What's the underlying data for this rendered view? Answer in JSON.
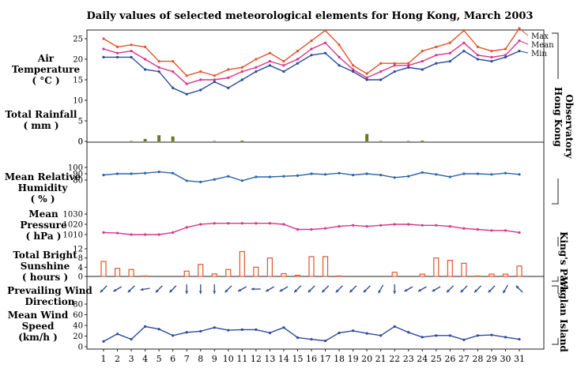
{
  "chart_data": {
    "type": "line",
    "title": "Daily values of selected meteorological elements for Hong Kong, March 2003",
    "x": [
      1,
      2,
      3,
      4,
      5,
      6,
      7,
      8,
      9,
      10,
      11,
      12,
      13,
      14,
      15,
      16,
      17,
      18,
      19,
      20,
      21,
      22,
      23,
      24,
      25,
      26,
      27,
      28,
      29,
      30,
      31
    ],
    "x_tick_labels": [
      "1",
      "2",
      "3",
      "4",
      "5",
      "6",
      "7",
      "8",
      "9",
      "10",
      "11",
      "12",
      "13",
      "14",
      "15",
      "16",
      "17",
      "18",
      "19",
      "20",
      "21",
      "22",
      "23",
      "24",
      "25",
      "26",
      "27",
      "28",
      "29",
      "30",
      "31"
    ],
    "station_labels": {
      "hko": "Hong Kong Observatory",
      "kp": "King's Park",
      "wi": "Waglan Island"
    },
    "panels": {
      "temperature": {
        "label": [
          "Air",
          "Temperature",
          "( °C )"
        ],
        "ylim": [
          0,
          25
        ],
        "ticks": [
          "0",
          "5",
          "10",
          "15",
          "20",
          "25"
        ],
        "series": [
          {
            "name": "Max",
            "color": "#e0552e",
            "values": [
              25,
              23,
              23.5,
              23,
              19.5,
              19.5,
              16,
              17,
              16,
              17.5,
              18,
              20,
              21.5,
              19.5,
              22,
              24.5,
              27,
              23.5,
              18.5,
              16.5,
              19,
              19,
              19,
              22,
              23,
              24,
              27,
              23,
              22,
              22.5,
              27.5
            ]
          },
          {
            "name": "Mean",
            "color": "#d8358a",
            "values": [
              22.5,
              21.5,
              22,
              20,
              18,
              17,
              14,
              15,
              15,
              15.5,
              17,
              18,
              19.5,
              18.5,
              20,
              22.5,
              24,
              20.5,
              17.5,
              15.5,
              17,
              18.5,
              18.5,
              19.5,
              21,
              21.5,
              24,
              21,
              20.5,
              21,
              24.5
            ]
          },
          {
            "name": "Min",
            "color": "#2c4a9a",
            "values": [
              20.5,
              20.5,
              20.5,
              17.5,
              17,
              13,
              11.5,
              12.5,
              14.5,
              13,
              15,
              17,
              18.5,
              17,
              19,
              21,
              21.5,
              18.5,
              17,
              15,
              15,
              17,
              18,
              17.5,
              19,
              19.5,
              22,
              20,
              19.5,
              20.5,
              22
            ]
          }
        ]
      },
      "rainfall": {
        "label": [
          "Total Rainfall",
          "( mm )"
        ],
        "ylim": [
          0,
          25
        ],
        "ticks": [
          "0"
        ],
        "color": "#6b7a1e",
        "values": [
          0,
          0,
          0.1,
          0.6,
          1.5,
          1.2,
          0,
          0,
          0.1,
          0,
          0.2,
          0,
          0,
          0,
          0,
          0,
          0,
          0,
          0,
          1.8,
          0.1,
          0,
          0.1,
          0.2,
          0,
          0,
          0,
          0,
          0,
          0,
          0
        ]
      },
      "humidity": {
        "label": [
          "Mean Relative",
          "Humidity",
          "( % )"
        ],
        "ylim": [
          70,
          100
        ],
        "ticks": [
          "100",
          "90",
          "80"
        ],
        "color": "#2c64a8",
        "values": [
          88,
          90,
          90,
          91,
          93,
          91,
          79,
          77,
          81,
          86,
          79,
          85,
          85,
          86,
          87,
          90,
          89,
          91,
          88,
          90,
          88,
          84,
          86,
          92,
          89,
          85,
          90,
          90,
          89,
          91,
          89
        ]
      },
      "pressure": {
        "label": [
          "Mean",
          "Pressure",
          "( hPa )"
        ],
        "ylim": [
          1010,
          1030
        ],
        "ticks": [
          "1030",
          "1020",
          "1010"
        ],
        "color": "#d8358a",
        "values": [
          1012,
          1011.5,
          1010,
          1010,
          1010,
          1012,
          1017,
          1020,
          1021,
          1021,
          1021,
          1021,
          1021,
          1020,
          1015,
          1015,
          1016,
          1018,
          1019,
          1018,
          1019,
          1020,
          1020,
          1019,
          1019,
          1018,
          1016,
          1015,
          1014,
          1014,
          1012
        ]
      },
      "sunshine": {
        "label": [
          "Total Bright",
          "Sunshine",
          "( hours )"
        ],
        "ylim": [
          0,
          12
        ],
        "ticks": [
          "12",
          "8",
          "4",
          "0"
        ],
        "color": "#e0552e",
        "values": [
          6.5,
          3.5,
          3,
          0.2,
          0,
          0,
          2.3,
          5.2,
          1.1,
          3,
          10.8,
          4,
          8,
          1.2,
          0.5,
          8.6,
          8.6,
          0.2,
          0,
          0,
          0,
          1.8,
          0,
          1,
          8,
          7,
          5.7,
          0.2,
          1,
          1,
          4.5
        ]
      },
      "wind_direction": {
        "label": [
          "Prevailing Wind",
          "Direction"
        ],
        "color": "#2c4a9a",
        "values_deg": [
          45,
          60,
          45,
          80,
          45,
          45,
          0,
          0,
          0,
          45,
          60,
          90,
          60,
          60,
          45,
          45,
          45,
          45,
          45,
          45,
          30,
          0,
          60,
          60,
          60,
          45,
          45,
          45,
          45,
          30,
          135
        ]
      },
      "wind_speed": {
        "label": [
          "Mean Wind",
          "Speed",
          "(km/h )"
        ],
        "ylim": [
          0,
          40
        ],
        "ticks": [
          "80",
          "60",
          "40",
          "20",
          "0"
        ],
        "color": "#2c4a9a",
        "values": [
          10,
          24,
          14,
          38,
          33,
          21,
          27,
          29,
          36,
          31,
          32,
          32,
          26,
          36,
          17,
          14,
          11,
          26,
          30,
          25,
          21,
          38,
          27,
          18,
          21,
          21,
          13,
          21,
          22,
          18,
          14
        ]
      }
    }
  }
}
